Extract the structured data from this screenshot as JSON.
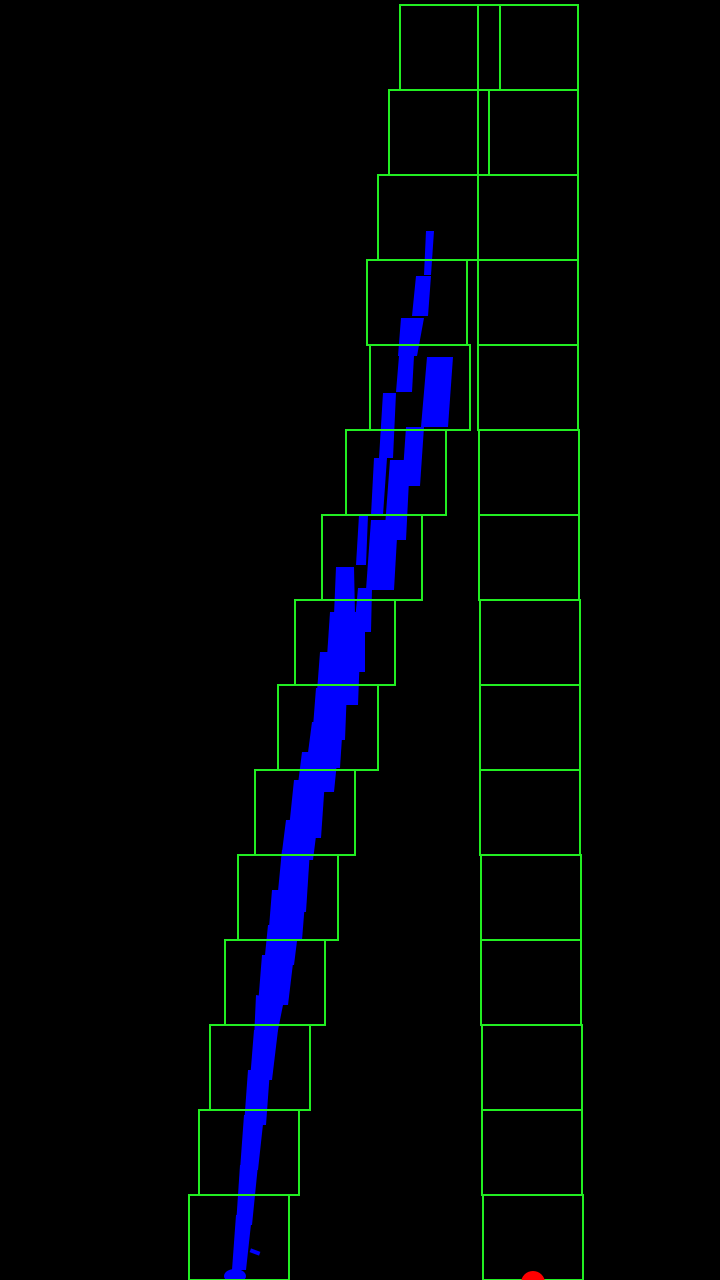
{
  "colors": {
    "background": "#000000",
    "window_outline": "#22ee22",
    "lane_pixels": "#0000ff",
    "base_point": "#ff0000"
  },
  "sliding_windows": {
    "count_per_lane": 15,
    "lanes": [
      "left",
      "right"
    ]
  },
  "markers": {
    "base_point_icon": "red-dot-icon",
    "lane_pixels_icon": "blue-pixel-cluster-icon"
  }
}
